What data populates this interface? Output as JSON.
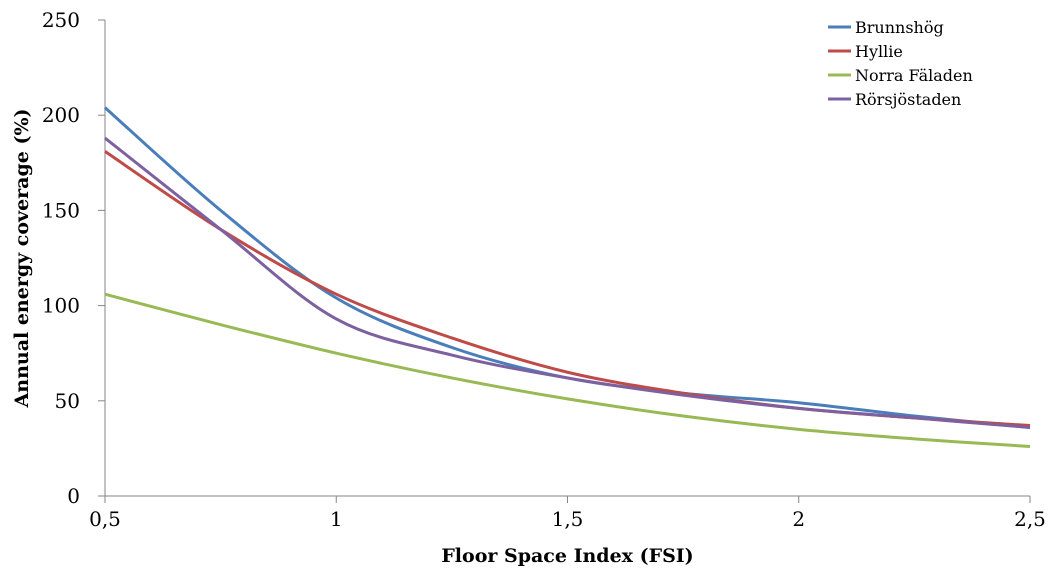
{
  "chart_data": {
    "type": "line",
    "title": "",
    "xlabel": "Floor Space Index (FSI)",
    "ylabel": "Annual energy coverage (%)",
    "xlim": [
      0.5,
      2.5
    ],
    "ylim": [
      0,
      250
    ],
    "x_ticks": [
      0.5,
      1,
      1.5,
      2,
      2.5
    ],
    "x_tick_labels": [
      "0,5",
      "1",
      "1,5",
      "2",
      "2,5"
    ],
    "y_ticks": [
      0,
      50,
      100,
      150,
      200,
      250
    ],
    "y_tick_labels": [
      "0",
      "50",
      "100",
      "150",
      "200",
      "250"
    ],
    "grid": false,
    "legend_position": "top-right",
    "series": [
      {
        "name": "Brunnshög",
        "color": "#4a7ebb",
        "x": [
          0.5,
          0.75,
          1,
          1.25,
          1.5,
          1.75,
          2,
          2.25,
          2.5
        ],
        "y": [
          204,
          150,
          104,
          78,
          62,
          54,
          49,
          42,
          36
        ]
      },
      {
        "name": "Hyllie",
        "color": "#be4b48",
        "x": [
          0.5,
          0.75,
          1,
          1.25,
          1.5,
          1.75,
          2,
          2.25,
          2.5
        ],
        "y": [
          181,
          140,
          106,
          83,
          65,
          54,
          46,
          41,
          37
        ]
      },
      {
        "name": "Norra Fäladen",
        "color": "#98b954",
        "x": [
          0.5,
          0.75,
          1,
          1.25,
          1.5,
          1.75,
          2,
          2.25,
          2.5
        ],
        "y": [
          106,
          90,
          75,
          62,
          51,
          42,
          35,
          30,
          26
        ]
      },
      {
        "name": "Rörsjöstaden",
        "color": "#7d60a0",
        "x": [
          0.5,
          0.75,
          1,
          1.25,
          1.5,
          1.75,
          2,
          2.25,
          2.5
        ],
        "y": [
          188,
          140,
          93,
          74,
          62,
          53,
          46,
          41,
          36
        ]
      }
    ]
  }
}
